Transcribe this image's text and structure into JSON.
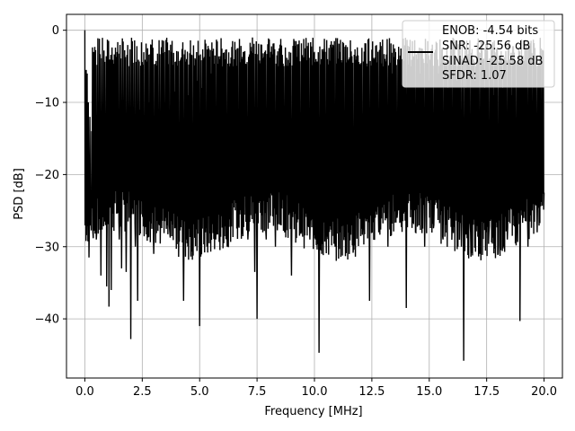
{
  "chart_data": {
    "type": "line",
    "title": "",
    "xlabel": "Frequency [MHz]",
    "ylabel": "PSD [dB]",
    "xlim": [
      -0.8,
      20.8
    ],
    "ylim": [
      -48.2,
      2.2
    ],
    "xticks": [
      0.0,
      2.5,
      5.0,
      7.5,
      10.0,
      12.5,
      15.0,
      17.5,
      20.0
    ],
    "xtick_labels": [
      "0.0",
      "2.5",
      "5.0",
      "7.5",
      "10.0",
      "12.5",
      "15.0",
      "17.5",
      "20.0"
    ],
    "yticks": [
      0,
      -10,
      -20,
      -30,
      -40
    ],
    "ytick_labels": [
      "0",
      "−10",
      "−20",
      "−30",
      "−40"
    ],
    "grid": true,
    "legend_position": "upper-right",
    "legend": [
      "ENOB: -4.54 bits",
      "SNR: -25.56 dB",
      "SINAD: -25.58 dB",
      "SFDR: 1.07"
    ],
    "series": [
      {
        "color": "#000000",
        "points": [
          [
            0.0,
            0
          ],
          [
            0.02,
            -7
          ],
          [
            0.04,
            -12
          ],
          [
            0.06,
            -5.5
          ],
          [
            0.08,
            -24.5
          ],
          [
            0.1,
            -6
          ],
          [
            0.12,
            -20
          ],
          [
            0.15,
            -10
          ],
          [
            0.18,
            -31.5
          ],
          [
            0.22,
            -12
          ],
          [
            0.26,
            -25
          ],
          [
            0.3,
            -14
          ],
          [
            0.35,
            -28
          ],
          [
            0.4,
            -13
          ],
          [
            0.5,
            -29
          ],
          [
            0.6,
            -12
          ],
          [
            0.7,
            -34
          ],
          [
            0.8,
            -15
          ],
          [
            0.9,
            -27
          ],
          [
            0.95,
            -35.5
          ],
          [
            1.0,
            -14
          ],
          [
            1.05,
            -38.3
          ],
          [
            1.1,
            -11
          ],
          [
            1.15,
            -36
          ],
          [
            1.3,
            -12
          ],
          [
            1.5,
            -29
          ],
          [
            1.6,
            -33
          ],
          [
            1.7,
            -10
          ],
          [
            1.8,
            -33.5
          ],
          [
            1.9,
            -11
          ],
          [
            2.0,
            -42.8
          ],
          [
            2.1,
            -12
          ],
          [
            2.2,
            -30
          ],
          [
            2.3,
            -37.5
          ],
          [
            2.4,
            -11
          ],
          [
            2.6,
            -27
          ],
          [
            2.8,
            -10
          ],
          [
            3.0,
            -31
          ],
          [
            3.2,
            -11
          ],
          [
            3.3,
            -24
          ],
          [
            3.5,
            -10
          ],
          [
            3.7,
            -28
          ],
          [
            3.9,
            -8.5
          ],
          [
            4.1,
            -26
          ],
          [
            4.3,
            -37.5
          ],
          [
            4.5,
            -9
          ],
          [
            4.7,
            -28
          ],
          [
            4.9,
            -7
          ],
          [
            5.0,
            -41
          ],
          [
            5.1,
            -8
          ],
          [
            5.3,
            -25
          ],
          [
            5.5,
            -6
          ],
          [
            5.7,
            -29
          ],
          [
            6.0,
            -5
          ],
          [
            6.2,
            -30
          ],
          [
            6.5,
            -4
          ],
          [
            6.7,
            -27
          ],
          [
            6.9,
            -3
          ],
          [
            7.1,
            -29
          ],
          [
            7.3,
            -1
          ],
          [
            7.4,
            -33.5
          ],
          [
            7.5,
            -40
          ],
          [
            7.7,
            -2
          ],
          [
            7.9,
            -29
          ],
          [
            8.1,
            -3
          ],
          [
            8.3,
            -30
          ],
          [
            8.5,
            -2
          ],
          [
            8.7,
            -28
          ],
          [
            8.9,
            -3
          ],
          [
            9.0,
            -34
          ],
          [
            9.2,
            -1.5
          ],
          [
            9.4,
            -28
          ],
          [
            9.6,
            -2.5
          ],
          [
            9.8,
            -29
          ],
          [
            10.0,
            -3
          ],
          [
            10.2,
            -44.7
          ],
          [
            10.3,
            -4
          ],
          [
            10.5,
            -27
          ],
          [
            10.7,
            -2
          ],
          [
            10.9,
            -30
          ],
          [
            11.1,
            -3
          ],
          [
            11.3,
            -26
          ],
          [
            11.5,
            -4
          ],
          [
            11.7,
            -30
          ],
          [
            11.9,
            -3.5
          ],
          [
            12.1,
            -27
          ],
          [
            12.3,
            -5
          ],
          [
            12.4,
            -37.5
          ],
          [
            12.6,
            -4
          ],
          [
            12.8,
            -28
          ],
          [
            13.0,
            -5
          ],
          [
            13.2,
            -30
          ],
          [
            13.4,
            -6
          ],
          [
            13.6,
            -26
          ],
          [
            13.8,
            -4
          ],
          [
            14.0,
            -38.5
          ],
          [
            14.2,
            -5
          ],
          [
            14.4,
            -28
          ],
          [
            14.6,
            -6
          ],
          [
            14.8,
            -30
          ],
          [
            15.0,
            -7
          ],
          [
            15.2,
            -27
          ],
          [
            15.4,
            -6
          ],
          [
            15.6,
            -29
          ],
          [
            15.8,
            -8
          ],
          [
            16.0,
            -27
          ],
          [
            16.2,
            -7
          ],
          [
            16.4,
            -30
          ],
          [
            16.5,
            -45.8
          ],
          [
            16.6,
            -8
          ],
          [
            16.8,
            -28
          ],
          [
            17.0,
            -7
          ],
          [
            17.2,
            -31
          ],
          [
            17.4,
            -8
          ],
          [
            17.6,
            -28
          ],
          [
            17.8,
            -9
          ],
          [
            18.0,
            -31
          ],
          [
            18.2,
            -8
          ],
          [
            18.4,
            -29
          ],
          [
            18.6,
            -9
          ],
          [
            18.8,
            -27
          ],
          [
            18.95,
            -40.3
          ],
          [
            19.1,
            -9
          ],
          [
            19.3,
            -30
          ],
          [
            19.5,
            -10
          ],
          [
            19.7,
            -28
          ],
          [
            19.9,
            -11
          ],
          [
            20.0,
            -22.5
          ]
        ]
      }
    ]
  }
}
